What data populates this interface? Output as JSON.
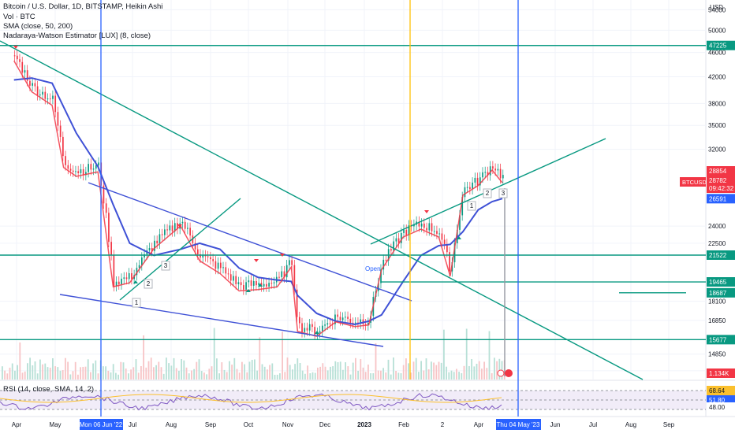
{
  "header": {
    "symbol_line": "Bitcoin / U.S. Dollar, 1D, BITSTAMP, Heikin Ashi",
    "volume_line": "Vol · BTC",
    "sma_line": "SMA (close, 50, 200)",
    "nw_line": "Nadaraya-Watson Estimator [LUX] (8, close)"
  },
  "rsi_header": "RSI (14, close, SMA, 14, 2)",
  "price_axis": {
    "currency": "USD",
    "ticks": [
      "54000",
      "50000",
      "46000",
      "42000",
      "38000",
      "35000",
      "32000",
      "24000",
      "22500",
      "18100",
      "16850",
      "14850",
      "13950"
    ]
  },
  "price_badges": [
    {
      "label": "47225",
      "color": "#089981"
    },
    {
      "label": "28854",
      "color": "#f23645"
    },
    {
      "label": "28782",
      "color": "#f23645"
    },
    {
      "label": "09:42:32",
      "color": "#f23645"
    },
    {
      "label": "26591",
      "color": "#2962ff"
    },
    {
      "label": "21522",
      "color": "#089981"
    },
    {
      "label": "19465",
      "color": "#089981"
    },
    {
      "label": "18687",
      "color": "#089981"
    },
    {
      "label": "15677",
      "color": "#089981"
    },
    {
      "label": "1.134K",
      "color": "#f23645"
    }
  ],
  "symbol_badge": "BTCUSD",
  "rsi_axis": {
    "labels": [
      "68.64",
      "51.80",
      "48.00"
    ]
  },
  "time_axis": {
    "labels": [
      "Apr",
      "May",
      "Jul",
      "Aug",
      "Sep",
      "Oct",
      "Nov",
      "Dec",
      "2023",
      "Feb",
      "2",
      "Apr",
      "Jun",
      "Jul",
      "Aug",
      "Sep"
    ],
    "cursor_left": "Mon 06 Jun '22",
    "cursor_right": "Thu 04 May '23"
  },
  "annotations": {
    "open_label": "Open",
    "wave_a": [
      "1",
      "2",
      "3"
    ],
    "wave_b": [
      "1",
      "2",
      "3"
    ]
  },
  "colors": {
    "up": "#089981",
    "down": "#f23645",
    "sma50": "#f23645",
    "sma200": "#3f51d6",
    "nw": "#00c853",
    "trend_green": "#089981",
    "trend_blue": "#3f51d6",
    "cursor_blue": "#2962ff",
    "cursor_yellow": "#ffc107"
  },
  "chart_data": {
    "type": "line",
    "x": [
      "2022-04-01",
      "2022-04-15",
      "2022-05-01",
      "2022-05-10",
      "2022-05-20",
      "2022-06-06",
      "2022-06-18",
      "2022-07-01",
      "2022-07-20",
      "2022-08-10",
      "2022-08-25",
      "2022-09-10",
      "2022-09-25",
      "2022-10-10",
      "2022-10-25",
      "2022-11-05",
      "2022-11-10",
      "2022-11-25",
      "2022-12-10",
      "2022-12-25",
      "2023-01-05",
      "2023-01-15",
      "2023-02-01",
      "2023-02-15",
      "2023-03-01",
      "2023-03-10",
      "2023-03-20",
      "2023-04-01",
      "2023-04-12",
      "2023-04-20"
    ],
    "series": [
      {
        "name": "BTCUSD",
        "values": [
          45500,
          40500,
          38500,
          30500,
          29500,
          30000,
          19500,
          19800,
          22500,
          24500,
          21500,
          20500,
          19200,
          19300,
          19500,
          21000,
          16500,
          16200,
          17100,
          16800,
          16900,
          20800,
          23500,
          24200,
          23500,
          20300,
          27500,
          28500,
          30200,
          28800
        ]
      },
      {
        "name": "SMA (close, 50, 200)",
        "values": [
          41500,
          41800,
          41000,
          37500,
          34000,
          30000,
          26000,
          22500,
          21500,
          22000,
          22500,
          22000,
          20500,
          19800,
          19600,
          19500,
          18500,
          17300,
          16800,
          16600,
          16800,
          17200,
          19500,
          21500,
          22300,
          22400,
          23500,
          25500,
          26300,
          26600
        ]
      }
    ],
    "ylim": [
      13500,
      56000
    ],
    "scale": "log",
    "horizontal_levels": [
      47225,
      21522,
      19465,
      18687,
      15677
    ],
    "rsi": {
      "value": 51.8,
      "sma": 68.64
    },
    "legend": "top-left",
    "grid": true
  }
}
